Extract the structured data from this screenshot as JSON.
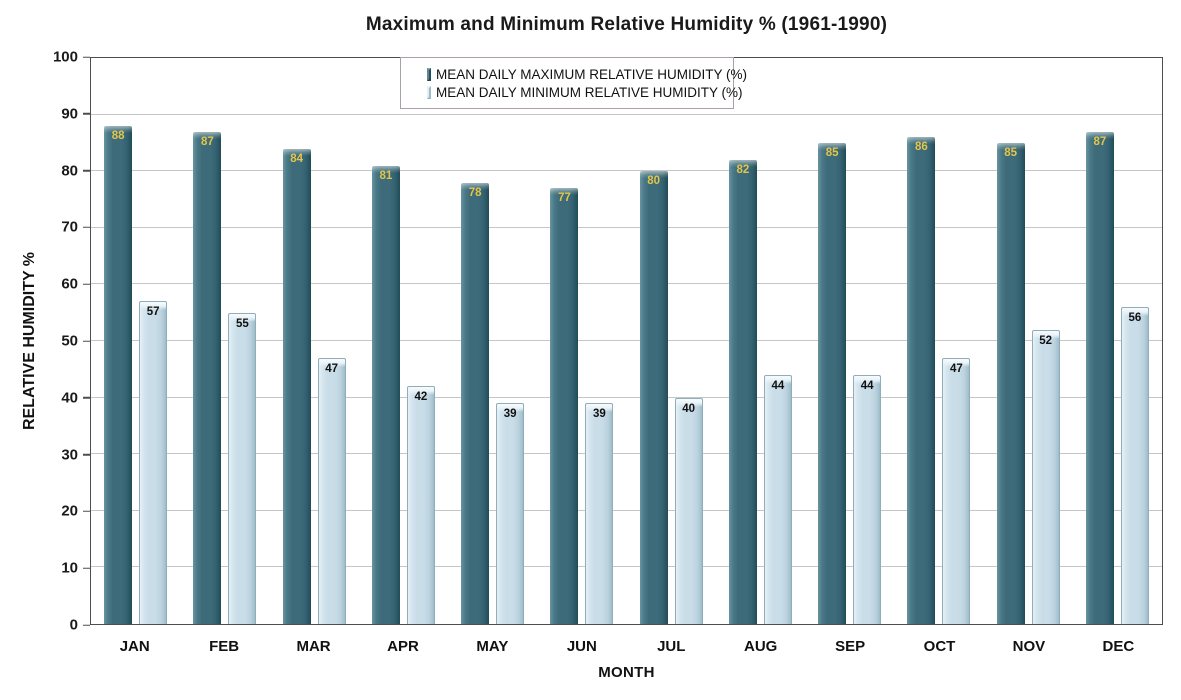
{
  "title": "Maximum and Minimum Relative Humidity %  (1961-1990)",
  "chart_data": {
    "type": "bar",
    "title": "Maximum and Minimum Relative Humidity %  (1961-1990)",
    "categories": [
      "JAN",
      "FEB",
      "MAR",
      "APR",
      "MAY",
      "JUN",
      "JUL",
      "AUG",
      "SEP",
      "OCT",
      "NOV",
      "DEC"
    ],
    "series": [
      {
        "name": "MEAN DAILY MAXIMUM RELATIVE HUMIDITY (%)",
        "values": [
          88,
          87,
          84,
          81,
          78,
          77,
          80,
          82,
          85,
          86,
          85,
          87
        ],
        "color": "#3E6B79",
        "label_color": "#E3C54A"
      },
      {
        "name": "MEAN DAILY MINIMUM RELATIVE HUMIDITY (%)",
        "values": [
          57,
          55,
          47,
          42,
          39,
          39,
          40,
          44,
          44,
          47,
          52,
          56
        ],
        "color": "#C9DDE8",
        "label_color": "#111111"
      }
    ],
    "xlabel": "MONTH",
    "ylabel": "RELATIVE HUMIDITY %",
    "ylim": [
      0,
      100
    ],
    "y_ticks": [
      0,
      10,
      20,
      30,
      40,
      50,
      60,
      70,
      80,
      90,
      100
    ],
    "grid": true,
    "legend_position": "top-center",
    "gridline_color": "#C6C6C6",
    "plot_border_color": "#4D4D4D"
  }
}
